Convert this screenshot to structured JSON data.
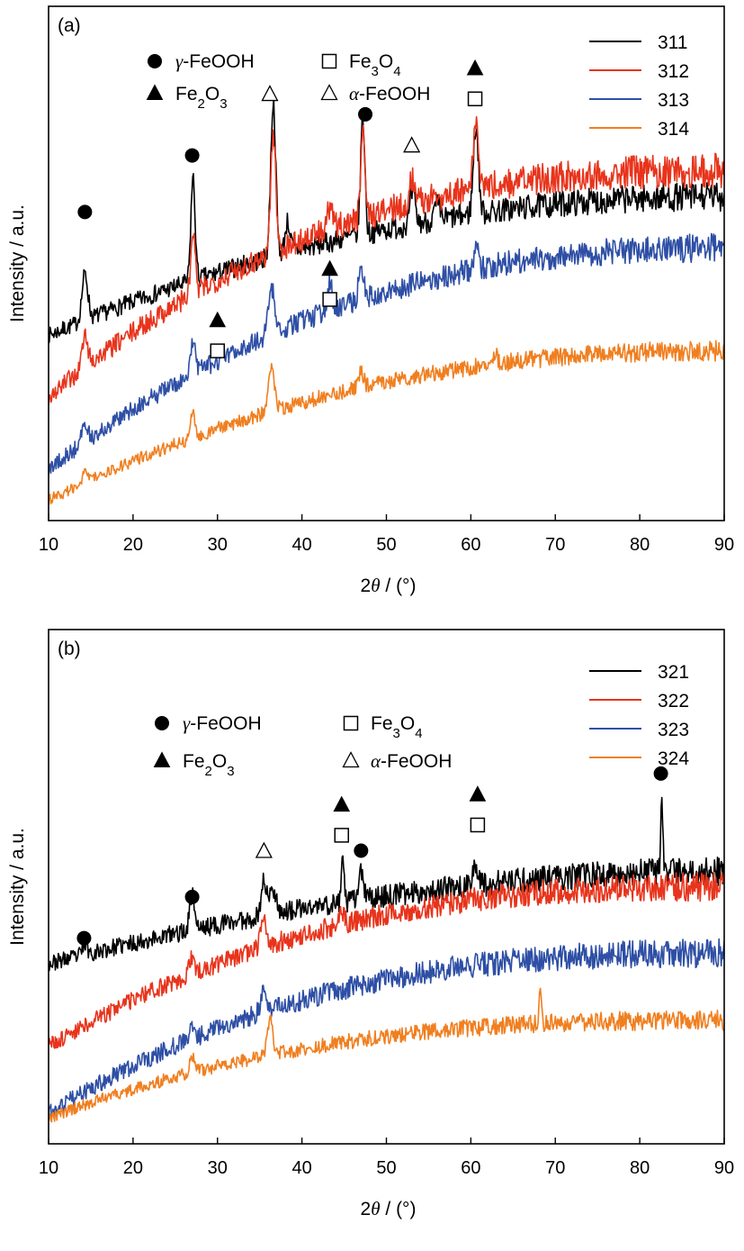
{
  "chart_data": [
    {
      "panel_label": "(a)",
      "type": "line",
      "xlabel_prefix": "2",
      "xlabel_symbol": "θ",
      "xlabel_unit": "/ (°)",
      "ylabel": "Intensity / a.u.",
      "xlim": [
        10,
        90
      ],
      "xticks": [
        10,
        20,
        30,
        40,
        50,
        60,
        70,
        80,
        90
      ],
      "yticks_shown": false,
      "legend_position": "top-right",
      "phase_key": {
        "gamma": "γ-FeOOH",
        "magnetite": "Fe3O4",
        "hematite": "Fe2O3",
        "alpha": "α-FeOOH"
      },
      "series": [
        {
          "name": "311",
          "color": "#000000",
          "base_start": 0.36,
          "base_end": 0.63,
          "curve": 0.6,
          "noise": 0.01,
          "peaks": [
            [
              14.3,
              0.09,
              0.35
            ],
            [
              27.1,
              0.2,
              0.25
            ],
            [
              36.6,
              0.3,
              0.3
            ],
            [
              38.3,
              0.06,
              0.3
            ],
            [
              47.2,
              0.23,
              0.25
            ],
            [
              53.1,
              0.06,
              0.3
            ],
            [
              60.6,
              0.17,
              0.3
            ],
            [
              56.0,
              0.03,
              0.3
            ]
          ]
        },
        {
          "name": "312",
          "color": "#e8341c",
          "base_start": 0.24,
          "base_end": 0.68,
          "curve": 0.85,
          "noise": 0.012,
          "peaks": [
            [
              14.3,
              0.06,
              0.35
            ],
            [
              27.1,
              0.12,
              0.25
            ],
            [
              36.6,
              0.23,
              0.3
            ],
            [
              43.3,
              0.04,
              0.3
            ],
            [
              47.2,
              0.18,
              0.25
            ],
            [
              53.1,
              0.05,
              0.3
            ],
            [
              60.6,
              0.13,
              0.3
            ]
          ]
        },
        {
          "name": "313",
          "color": "#2e4fa5",
          "base_start": 0.1,
          "base_end": 0.53,
          "curve": 0.75,
          "noise": 0.01,
          "peaks": [
            [
              14.3,
              0.04,
              0.35
            ],
            [
              27.1,
              0.07,
              0.25
            ],
            [
              36.4,
              0.09,
              0.35
            ],
            [
              43.3,
              0.05,
              0.3
            ],
            [
              47.0,
              0.06,
              0.3
            ],
            [
              60.6,
              0.04,
              0.3
            ]
          ]
        },
        {
          "name": "314",
          "color": "#f07f20",
          "base_start": 0.04,
          "base_end": 0.33,
          "curve": 0.7,
          "noise": 0.007,
          "peaks": [
            [
              14.3,
              0.02,
              0.35
            ],
            [
              27.1,
              0.05,
              0.25
            ],
            [
              36.4,
              0.08,
              0.35
            ],
            [
              47.0,
              0.03,
              0.3
            ],
            [
              62.8,
              0.02,
              0.3
            ]
          ]
        }
      ],
      "markers": [
        {
          "shape": "circle",
          "x": 14.3,
          "y": 0.6
        },
        {
          "shape": "circle",
          "x": 27.0,
          "y": 0.71
        },
        {
          "shape": "circle",
          "x": 47.5,
          "y": 0.79
        },
        {
          "shape": "triangle-open",
          "x": 36.2,
          "y": 0.83
        },
        {
          "shape": "triangle-open",
          "x": 53.0,
          "y": 0.73
        },
        {
          "shape": "triangle-filled",
          "x": 60.5,
          "y": 0.88
        },
        {
          "shape": "square-open",
          "x": 60.5,
          "y": 0.82
        },
        {
          "shape": "triangle-filled",
          "x": 43.3,
          "y": 0.49
        },
        {
          "shape": "square-open",
          "x": 43.3,
          "y": 0.43
        },
        {
          "shape": "triangle-filled",
          "x": 30.0,
          "y": 0.39
        },
        {
          "shape": "square-open",
          "x": 30.0,
          "y": 0.33
        }
      ]
    },
    {
      "panel_label": "(b)",
      "type": "line",
      "xlabel_prefix": "2",
      "xlabel_symbol": "θ",
      "xlabel_unit": "/ (°)",
      "ylabel": "Intensity / a.u.",
      "xlim": [
        10,
        90
      ],
      "xticks": [
        10,
        20,
        30,
        40,
        50,
        60,
        70,
        80,
        90
      ],
      "yticks_shown": false,
      "legend_position": "top-right",
      "phase_key": {
        "gamma": "γ-FeOOH",
        "magnetite": "Fe3O4",
        "hematite": "Fe2O3",
        "alpha": "α-FeOOH"
      },
      "series": [
        {
          "name": "321",
          "color": "#000000",
          "base_start": 0.35,
          "base_end": 0.53,
          "curve": 0.5,
          "noise": 0.01,
          "peaks": [
            [
              14.3,
              0.02,
              0.3
            ],
            [
              27.0,
              0.07,
              0.3
            ],
            [
              35.5,
              0.07,
              0.3
            ],
            [
              36.6,
              0.05,
              0.4
            ],
            [
              44.8,
              0.1,
              0.15
            ],
            [
              47.0,
              0.05,
              0.3
            ],
            [
              60.6,
              0.04,
              0.3
            ],
            [
              82.6,
              0.16,
              0.12
            ]
          ]
        },
        {
          "name": "322",
          "color": "#e8341c",
          "base_start": 0.19,
          "base_end": 0.5,
          "curve": 0.85,
          "noise": 0.01,
          "peaks": [
            [
              27.0,
              0.03,
              0.3
            ],
            [
              35.5,
              0.05,
              0.35
            ],
            [
              44.8,
              0.02,
              0.3
            ]
          ]
        },
        {
          "name": "323",
          "color": "#2e4fa5",
          "base_start": 0.06,
          "base_end": 0.37,
          "curve": 0.9,
          "noise": 0.01,
          "peaks": [
            [
              27.0,
              0.03,
              0.3
            ],
            [
              35.5,
              0.04,
              0.35
            ]
          ]
        },
        {
          "name": "324",
          "color": "#f07f20",
          "base_start": 0.05,
          "base_end": 0.24,
          "curve": 0.9,
          "noise": 0.007,
          "peaks": [
            [
              27.0,
              0.03,
              0.3
            ],
            [
              36.2,
              0.07,
              0.3
            ],
            [
              68.2,
              0.07,
              0.15
            ]
          ]
        }
      ],
      "markers": [
        {
          "shape": "circle",
          "x": 14.2,
          "y": 0.4
        },
        {
          "shape": "circle",
          "x": 27.0,
          "y": 0.48
        },
        {
          "shape": "circle",
          "x": 47.0,
          "y": 0.57
        },
        {
          "shape": "circle",
          "x": 82.5,
          "y": 0.72
        },
        {
          "shape": "triangle-open",
          "x": 35.5,
          "y": 0.57
        },
        {
          "shape": "triangle-filled",
          "x": 44.7,
          "y": 0.66
        },
        {
          "shape": "square-open",
          "x": 44.7,
          "y": 0.6
        },
        {
          "shape": "triangle-filled",
          "x": 60.8,
          "y": 0.68
        },
        {
          "shape": "square-open",
          "x": 60.8,
          "y": 0.62
        }
      ]
    }
  ]
}
